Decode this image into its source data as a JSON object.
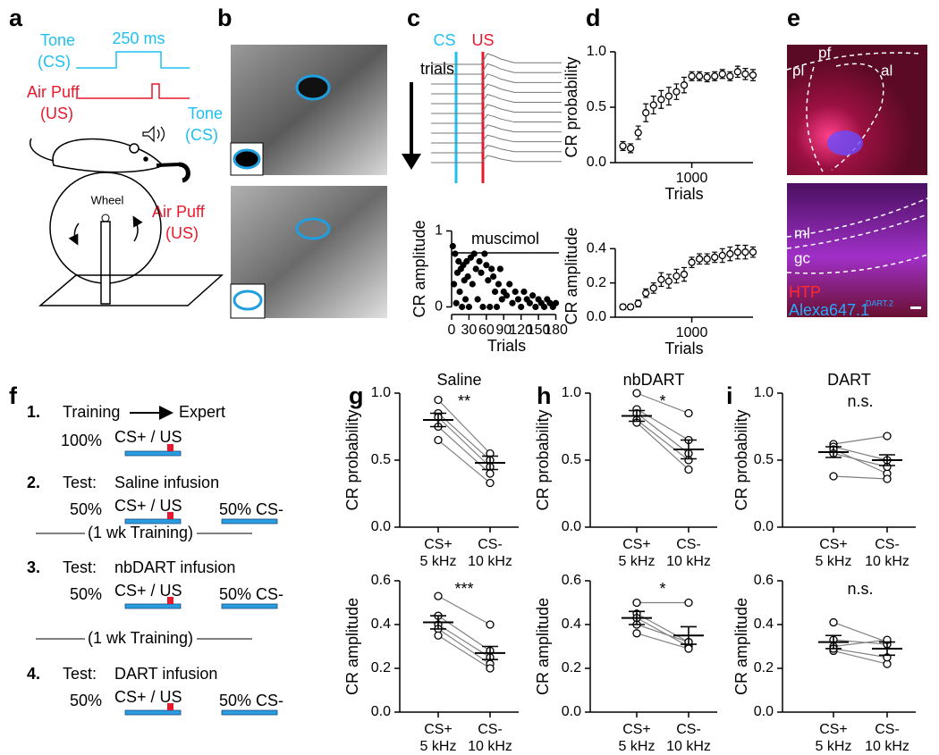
{
  "panel_labels": [
    "a",
    "b",
    "c",
    "d",
    "e",
    "f",
    "g",
    "h",
    "i"
  ],
  "panel_a": {
    "tone": "Tone",
    "tone_cs": "(CS)",
    "duration": "250 ms",
    "air_puff": "Air Puff",
    "air_puff_us": "(US)",
    "tone2": "Tone",
    "tone2_cs": "(CS)",
    "wheel": "Wheel",
    "air_puff2": "Air Puff",
    "air_puff2_us": "(US)"
  },
  "panel_c": {
    "cs": "CS",
    "us": "US",
    "trials": "trials"
  },
  "panel_e": {
    "pl": "pl",
    "pf": "pf",
    "al": "al",
    "ml": "ml",
    "gc": "gc",
    "htp": "HTP",
    "alexa": "Alexa647.1",
    "alexa_sup": "DART.2"
  },
  "panel_f": {
    "step1": {
      "number": "1.",
      "from": "Training",
      "to": "Expert",
      "pct": "100%",
      "trial": "CS+ / US"
    },
    "tests": [
      {
        "number": "2.",
        "label": "Test:",
        "infusion": "Saline infusion",
        "pct": "50%",
        "trial": "CS+ / US",
        "other": "50% CS-"
      },
      {
        "number": "3.",
        "label": "Test:",
        "infusion": "nbDART infusion",
        "pct": "50%",
        "trial": "CS+ / US",
        "other": "50% CS-"
      },
      {
        "number": "4.",
        "label": "Test:",
        "infusion": "DART infusion",
        "pct": "50%",
        "trial": "CS+ / US",
        "other": "50% CS-"
      }
    ],
    "separator": "(1 wk Training)"
  },
  "chart_data": [
    {
      "type": "scatter",
      "xlabel": "Trials",
      "ylabel": "CR amplitude",
      "annotation": "muscimol",
      "color": "#000000",
      "x": [
        2,
        4,
        6,
        8,
        10,
        12,
        14,
        16,
        18,
        20,
        22,
        24,
        26,
        28,
        30,
        33,
        36,
        39,
        42,
        45,
        48,
        51,
        54,
        57,
        60,
        63,
        66,
        69,
        72,
        75,
        78,
        81,
        84,
        87,
        90,
        95,
        100,
        105,
        110,
        115,
        120,
        125,
        130,
        135,
        140,
        145,
        150,
        155,
        160,
        165,
        170,
        175,
        180
      ],
      "values": [
        0.8,
        0.3,
        0.7,
        0.05,
        0.45,
        0.6,
        0.2,
        0.5,
        0.0,
        0.55,
        0.35,
        0.1,
        0.6,
        0.4,
        0.0,
        0.65,
        0.3,
        0.7,
        0.5,
        0.1,
        0.6,
        0.45,
        0.0,
        0.7,
        0.55,
        0.35,
        0.0,
        0.5,
        0.4,
        0.2,
        0.0,
        0.3,
        0.5,
        0.1,
        0.2,
        0.15,
        0.3,
        0.05,
        0.2,
        0.1,
        0.0,
        0.2,
        0.1,
        0.05,
        0.15,
        0.0,
        0.1,
        0.05,
        0.0,
        0.1,
        0.05,
        0.0,
        0.05
      ],
      "xlim": [
        0,
        190
      ],
      "ylim": [
        -0.1,
        1.1
      ],
      "xticks": [
        0,
        30,
        60,
        90,
        120,
        150,
        180
      ],
      "yticks": [
        0,
        1
      ]
    },
    {
      "type": "errorbar",
      "xlabel": "Trials",
      "ylabel": "CR probability",
      "color": "#000000",
      "x": [
        100,
        200,
        300,
        400,
        500,
        600,
        700,
        800,
        900,
        1000,
        1100,
        1200,
        1300,
        1400,
        1500,
        1600,
        1700,
        1800
      ],
      "values": [
        0.15,
        0.13,
        0.27,
        0.45,
        0.52,
        0.57,
        0.6,
        0.64,
        0.7,
        0.78,
        0.78,
        0.77,
        0.78,
        0.8,
        0.78,
        0.82,
        0.8,
        0.79
      ],
      "errors": [
        0.04,
        0.04,
        0.06,
        0.08,
        0.08,
        0.08,
        0.08,
        0.07,
        0.07,
        0.04,
        0.04,
        0.04,
        0.04,
        0.04,
        0.04,
        0.05,
        0.05,
        0.05
      ],
      "xlim": [
        0,
        1800
      ],
      "ylim": [
        0,
        1
      ],
      "xticks": [
        1000
      ],
      "yticks": [
        {
          "value": 0,
          "label": "0.0"
        },
        {
          "value": 0.5,
          "label": "0.5"
        },
        {
          "value": 1,
          "label": "1.0"
        }
      ]
    },
    {
      "type": "errorbar",
      "xlabel": "Trials",
      "ylabel": "CR amplitude",
      "color": "#000000",
      "x": [
        100,
        200,
        300,
        400,
        500,
        600,
        700,
        800,
        900,
        1000,
        1100,
        1200,
        1300,
        1400,
        1500,
        1600,
        1700,
        1800
      ],
      "values": [
        0.06,
        0.06,
        0.08,
        0.14,
        0.17,
        0.22,
        0.21,
        0.24,
        0.25,
        0.32,
        0.34,
        0.34,
        0.35,
        0.36,
        0.37,
        0.38,
        0.38,
        0.38
      ],
      "errors": [
        0.015,
        0.015,
        0.02,
        0.025,
        0.03,
        0.04,
        0.04,
        0.04,
        0.04,
        0.03,
        0.03,
        0.03,
        0.03,
        0.04,
        0.04,
        0.04,
        0.04,
        0.03
      ],
      "xlim": [
        0,
        1800
      ],
      "ylim": [
        0,
        0.48
      ],
      "xticks": [
        1000
      ],
      "yticks": [
        {
          "value": 0,
          "label": "0.0"
        },
        {
          "value": 0.2,
          "label": "0.2"
        },
        {
          "value": 0.4,
          "label": "0.4"
        }
      ]
    },
    {
      "type": "paired",
      "title": "Saline",
      "ylabel": "CR probability",
      "categories": [
        "CS+",
        "CS-"
      ],
      "category_sublabels": [
        "5 kHz",
        "10 kHz"
      ],
      "color": "#808080",
      "subjects": [
        [
          0.95,
          0.55
        ],
        [
          0.85,
          0.5
        ],
        [
          0.82,
          0.45
        ],
        [
          0.75,
          0.4
        ],
        [
          0.65,
          0.33
        ]
      ],
      "mean": [
        0.8,
        0.48
      ],
      "sem": [
        0.05,
        0.05
      ],
      "significance": "**",
      "ylim": [
        0,
        1
      ],
      "yticks": [
        {
          "value": 0,
          "label": "0.0"
        },
        {
          "value": 0.5,
          "label": "0.5"
        },
        {
          "value": 1,
          "label": "1.0"
        }
      ]
    },
    {
      "type": "paired",
      "ylabel": "CR amplitude",
      "categories": [
        "CS+",
        "CS-"
      ],
      "category_sublabels": [
        "5 kHz",
        "10 kHz"
      ],
      "color": "#808080",
      "subjects": [
        [
          0.53,
          0.4
        ],
        [
          0.44,
          0.28
        ],
        [
          0.4,
          0.25
        ],
        [
          0.38,
          0.22
        ],
        [
          0.35,
          0.2
        ]
      ],
      "mean": [
        0.41,
        0.27
      ],
      "sem": [
        0.03,
        0.03
      ],
      "significance": "***",
      "ylim": [
        0,
        0.6
      ],
      "yticks": [
        {
          "value": 0,
          "label": "0.0"
        },
        {
          "value": 0.2,
          "label": "0.2"
        },
        {
          "value": 0.4,
          "label": "0.4"
        },
        {
          "value": 0.6,
          "label": "0.6"
        }
      ]
    },
    {
      "type": "paired",
      "title": "nbDART",
      "ylabel": "CR probability",
      "categories": [
        "CS+",
        "CS-"
      ],
      "category_sublabels": [
        "5 kHz",
        "10 kHz"
      ],
      "color": "#808080",
      "subjects": [
        [
          1.0,
          0.85
        ],
        [
          0.88,
          0.65
        ],
        [
          0.85,
          0.55
        ],
        [
          0.8,
          0.5
        ],
        [
          0.78,
          0.43
        ]
      ],
      "mean": [
        0.83,
        0.58
      ],
      "sem": [
        0.04,
        0.07
      ],
      "significance": "*",
      "ylim": [
        0,
        1
      ],
      "yticks": [
        {
          "value": 0,
          "label": "0.0"
        },
        {
          "value": 0.5,
          "label": "0.5"
        },
        {
          "value": 1,
          "label": "1.0"
        }
      ]
    },
    {
      "type": "paired",
      "ylabel": "CR amplitude",
      "categories": [
        "CS+",
        "CS-"
      ],
      "category_sublabels": [
        "5 kHz",
        "10 kHz"
      ],
      "color": "#808080",
      "subjects": [
        [
          0.5,
          0.5
        ],
        [
          0.45,
          0.32
        ],
        [
          0.43,
          0.3
        ],
        [
          0.4,
          0.32
        ],
        [
          0.36,
          0.29
        ]
      ],
      "mean": [
        0.43,
        0.35
      ],
      "sem": [
        0.03,
        0.04
      ],
      "significance": "*",
      "ylim": [
        0,
        0.6
      ],
      "yticks": [
        {
          "value": 0,
          "label": "0.0"
        },
        {
          "value": 0.2,
          "label": "0.2"
        },
        {
          "value": 0.4,
          "label": "0.4"
        },
        {
          "value": 0.6,
          "label": "0.6"
        }
      ]
    },
    {
      "type": "paired",
      "title": "DART",
      "ylabel": "CR probability",
      "categories": [
        "CS+",
        "CS-"
      ],
      "category_sublabels": [
        "5 kHz",
        "10 kHz"
      ],
      "color": "#808080",
      "subjects": [
        [
          0.62,
          0.68
        ],
        [
          0.6,
          0.5
        ],
        [
          0.58,
          0.4
        ],
        [
          0.55,
          0.45
        ],
        [
          0.38,
          0.36
        ]
      ],
      "mean": [
        0.56,
        0.5
      ],
      "sem": [
        0.04,
        0.04
      ],
      "significance": "n.s.",
      "ylim": [
        0,
        1
      ],
      "yticks": [
        {
          "value": 0,
          "label": "0.0"
        },
        {
          "value": 0.5,
          "label": "0.5"
        },
        {
          "value": 1,
          "label": "1.0"
        }
      ]
    },
    {
      "type": "paired",
      "ylabel": "CR amplitude",
      "categories": [
        "CS+",
        "CS-"
      ],
      "category_sublabels": [
        "5 kHz",
        "10 kHz"
      ],
      "color": "#808080",
      "subjects": [
        [
          0.41,
          0.32
        ],
        [
          0.33,
          0.31
        ],
        [
          0.3,
          0.33
        ],
        [
          0.28,
          0.22
        ],
        [
          0.29,
          0.25
        ]
      ],
      "mean": [
        0.32,
        0.29
      ],
      "sem": [
        0.03,
        0.03
      ],
      "significance": "n.s.",
      "ylim": [
        0,
        0.6
      ],
      "yticks": [
        {
          "value": 0,
          "label": "0.0"
        },
        {
          "value": 0.2,
          "label": "0.2"
        },
        {
          "value": 0.4,
          "label": "0.4"
        },
        {
          "value": 0.6,
          "label": "0.6"
        }
      ]
    }
  ]
}
